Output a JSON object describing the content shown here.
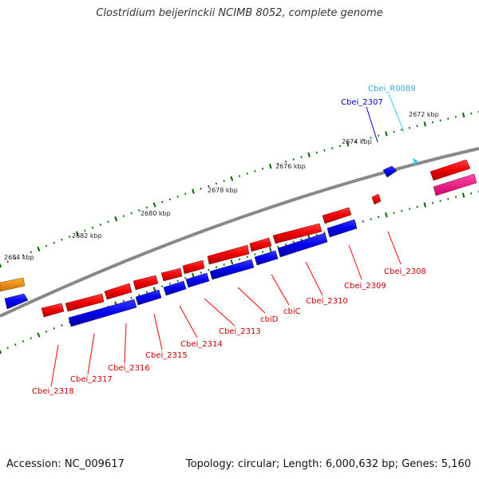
{
  "title": "Clostridium beijerinckii NCIMB 8052, complete genome",
  "accession": "Accession: NC_009617",
  "topology": "Topology: circular; Length: 6,000,632 bp; Genes: 5,160",
  "colors": {
    "backbone": "#888888",
    "forward_gene": "#ff0000",
    "reverse_gene": "#0000ff",
    "orange_gene": "#ff9900",
    "pink_gene": "#ff1493",
    "rna_gene": "#33ccff",
    "tick": "#006600",
    "label_red": "#cc0000",
    "label_blue": "#0000cc",
    "label_cyan": "#33aadd"
  },
  "scale_labels": [
    "2684 kbp",
    "2682 kbp",
    "2680 kbp",
    "2678 kbp",
    "2676 kbp",
    "2674 kbp",
    "2672 kbp"
  ],
  "gene_labels": [
    "Cbei_R0089",
    "Cbei_2307",
    "Cbei_2308",
    "Cbei_2309",
    "Cbei_2310",
    "cbiC",
    "cbiD",
    "Cbei_2313",
    "Cbei_2314",
    "Cbei_2315",
    "Cbei_2316",
    "Cbei_2317",
    "Cbei_2318"
  ]
}
